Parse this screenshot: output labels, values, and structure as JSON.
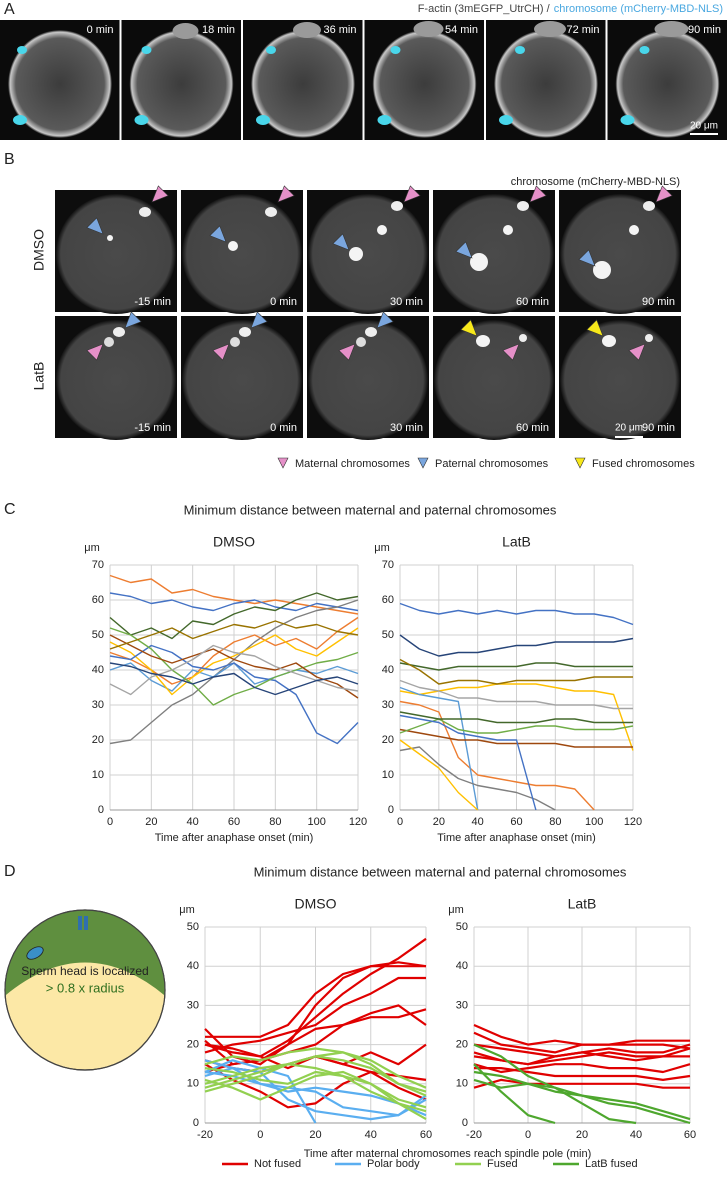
{
  "panel_a": {
    "label": "A",
    "title": [
      "F-actin (3mEGFP_UtrCH) /",
      "chromosome (mCherry-MBD-NLS)"
    ],
    "times": [
      "0 min",
      "18 min",
      "36 min",
      "54 min",
      "72 min",
      "90 min"
    ],
    "scale": "20 μm"
  },
  "panel_b": {
    "label": "B",
    "title": "chromosome (mCherry-MBD-NLS)",
    "rows": [
      "DMSO",
      "LatB"
    ],
    "times": [
      "-15 min",
      "0 min",
      "30 min",
      "60 min",
      "90 min"
    ],
    "scale": "20 μm",
    "legend": [
      "Maternal chromosomes",
      "Paternal chromosomes",
      "Fused chromosomes"
    ]
  },
  "panel_c": {
    "label": "C",
    "title": "Minimum distance between maternal and paternal chromosomes"
  },
  "panel_d": {
    "label": "D",
    "title": "Minimum distance between maternal and paternal chromosomes",
    "diagram": [
      "Sperm head is localized",
      "> 0.8 x radius"
    ],
    "legend": [
      {
        "name": "Not fused",
        "color": "#e00000"
      },
      {
        "name": "Polar body",
        "color": "#5aaef0"
      },
      {
        "name": "Fused",
        "color": "#92d050"
      },
      {
        "name": "LatB fused",
        "color": "#4ea72e"
      }
    ]
  },
  "chart_data": [
    {
      "type": "line",
      "title": "DMSO",
      "y_label": "μm",
      "x_label": "Time after anaphase onset (min)",
      "grid": true,
      "xlim": [
        0,
        120
      ],
      "ylim": [
        0,
        70
      ],
      "xticks": [
        0,
        20,
        40,
        60,
        80,
        100,
        120
      ],
      "yticks": [
        0,
        10,
        20,
        30,
        40,
        50,
        60,
        70
      ],
      "x": [
        0,
        10,
        20,
        30,
        40,
        50,
        60,
        70,
        80,
        90,
        100,
        110,
        120
      ],
      "series": [
        {
          "color": "#ed7d31",
          "values": [
            67,
            65,
            66,
            62,
            63,
            61,
            60,
            59,
            60,
            59,
            58,
            57,
            56
          ]
        },
        {
          "color": "#4472c4",
          "values": [
            62,
            61,
            59,
            60,
            58,
            57,
            59,
            60,
            58,
            57,
            59,
            58,
            57
          ]
        },
        {
          "color": "#43682b",
          "values": [
            55,
            50,
            52,
            49,
            54,
            53,
            56,
            58,
            57,
            60,
            62,
            60,
            61
          ]
        },
        {
          "color": "#7f7f7f",
          "values": [
            19,
            20,
            25,
            30,
            33,
            38,
            43,
            48,
            52,
            55,
            57,
            58,
            60
          ]
        },
        {
          "color": "#ed7d31",
          "values": [
            45,
            43,
            40,
            36,
            38,
            44,
            48,
            50,
            47,
            49,
            46,
            51,
            55
          ]
        },
        {
          "color": "#5b9bd5",
          "values": [
            40,
            42,
            37,
            34,
            40,
            38,
            42,
            36,
            38,
            40,
            39,
            41,
            39
          ]
        },
        {
          "color": "#ffc000",
          "values": [
            48,
            45,
            40,
            33,
            38,
            42,
            44,
            47,
            50,
            46,
            44,
            48,
            52
          ]
        },
        {
          "color": "#4472c4",
          "values": [
            44,
            43,
            47,
            45,
            41,
            40,
            42,
            38,
            37,
            33,
            22,
            19,
            25
          ]
        },
        {
          "color": "#70ad47",
          "values": [
            52,
            50,
            46,
            40,
            36,
            30,
            33,
            35,
            38,
            40,
            42,
            43,
            45
          ]
        },
        {
          "color": "#9e480e",
          "values": [
            50,
            47,
            44,
            42,
            44,
            46,
            43,
            41,
            40,
            42,
            38,
            36,
            32
          ]
        },
        {
          "color": "#a5a5a5",
          "values": [
            36,
            33,
            38,
            40,
            43,
            47,
            45,
            44,
            41,
            39,
            37,
            35,
            34
          ]
        },
        {
          "color": "#264478",
          "values": [
            42,
            41,
            39,
            38,
            36,
            38,
            39,
            35,
            33,
            35,
            37,
            38,
            36
          ]
        },
        {
          "color": "#997300",
          "values": [
            46,
            48,
            50,
            52,
            49,
            51,
            53,
            52,
            54,
            52,
            53,
            51,
            50
          ]
        }
      ]
    },
    {
      "type": "line",
      "title": "LatB",
      "y_label": "μm",
      "x_label": "Time after anaphase onset (min)",
      "grid": true,
      "xlim": [
        0,
        120
      ],
      "ylim": [
        0,
        70
      ],
      "xticks": [
        0,
        20,
        40,
        60,
        80,
        100,
        120
      ],
      "yticks": [
        0,
        10,
        20,
        30,
        40,
        50,
        60,
        70
      ],
      "x": [
        0,
        10,
        20,
        30,
        40,
        50,
        60,
        70,
        80,
        90,
        100,
        110,
        120
      ],
      "series": [
        {
          "color": "#4472c4",
          "values": [
            59,
            57,
            56,
            57,
            56,
            57,
            56,
            57,
            57,
            56,
            56,
            55,
            53
          ]
        },
        {
          "color": "#264478",
          "values": [
            50,
            46,
            44,
            45,
            45,
            46,
            47,
            47,
            48,
            48,
            48,
            48,
            49
          ]
        },
        {
          "color": "#43682b",
          "values": [
            42,
            41,
            40,
            41,
            41,
            41,
            41,
            42,
            42,
            41,
            41,
            41,
            41
          ]
        },
        {
          "color": "#ffc000",
          "values": [
            34,
            33,
            34,
            35,
            35,
            36,
            36,
            36,
            35,
            34,
            34,
            33,
            17
          ]
        },
        {
          "color": "#a5a5a5",
          "values": [
            37,
            35,
            34,
            32,
            32,
            31,
            31,
            31,
            30,
            30,
            30,
            29,
            29
          ]
        },
        {
          "color": "#997300",
          "values": [
            43,
            40,
            36,
            37,
            37,
            36,
            37,
            37,
            37,
            37,
            38,
            38,
            38
          ]
        },
        {
          "color": "#ed7d31",
          "values": [
            31,
            30,
            28,
            15,
            10,
            9,
            8,
            7,
            7,
            6,
            0,
            null,
            null
          ]
        },
        {
          "color": "#5b9bd5",
          "values": [
            35,
            33,
            32,
            31,
            0,
            null,
            null,
            null,
            null,
            null,
            null,
            null,
            null
          ]
        },
        {
          "color": "#9e480e",
          "values": [
            23,
            22,
            21,
            20,
            20,
            19,
            19,
            19,
            19,
            18,
            18,
            18,
            18
          ]
        },
        {
          "color": "#7f7f7f",
          "values": [
            17,
            18,
            13,
            9,
            7,
            6,
            5,
            3,
            0,
            null,
            null,
            null,
            null
          ]
        },
        {
          "color": "#70ad47",
          "values": [
            22,
            24,
            26,
            23,
            22,
            22,
            23,
            24,
            24,
            23,
            23,
            23,
            24
          ]
        },
        {
          "color": "#43682b",
          "values": [
            28,
            27,
            26,
            26,
            26,
            25,
            25,
            25,
            26,
            26,
            25,
            25,
            25
          ]
        },
        {
          "color": "#4472c4",
          "values": [
            27,
            26,
            25,
            22,
            21,
            20,
            20,
            0,
            null,
            null,
            null,
            null,
            null
          ]
        },
        {
          "color": "#ffc000",
          "values": [
            20,
            16,
            12,
            5,
            0,
            null,
            null,
            null,
            null,
            null,
            null,
            null,
            null
          ]
        }
      ]
    },
    {
      "type": "line",
      "title": "DMSO",
      "y_label": "μm",
      "x_label": "Time after maternal chromosomes reach spindle pole (min)",
      "grid": true,
      "xlim": [
        -20,
        60
      ],
      "ylim": [
        0,
        50
      ],
      "xticks": [
        -20,
        0,
        20,
        40,
        60
      ],
      "yticks": [
        0,
        10,
        20,
        30,
        40,
        50
      ],
      "x": [
        -20,
        -10,
        0,
        10,
        20,
        30,
        40,
        50,
        60
      ],
      "series": [
        {
          "color": "#e00000",
          "values": [
            22,
            22,
            22,
            25,
            33,
            38,
            40,
            40,
            40
          ]
        },
        {
          "color": "#e00000",
          "values": [
            24,
            17,
            15,
            20,
            30,
            37,
            40,
            41,
            40
          ]
        },
        {
          "color": "#e00000",
          "values": [
            20,
            18,
            17,
            21,
            27,
            33,
            38,
            42,
            47
          ]
        },
        {
          "color": "#e00000",
          "values": [
            18,
            20,
            21,
            23,
            25,
            30,
            33,
            37,
            37
          ]
        },
        {
          "color": "#e00000",
          "values": [
            21,
            15,
            16,
            18,
            20,
            25,
            28,
            30,
            25
          ]
        },
        {
          "color": "#e00000",
          "values": [
            13,
            15,
            16,
            20,
            24,
            25,
            27,
            27,
            29
          ]
        },
        {
          "color": "#e00000",
          "values": [
            16,
            14,
            13,
            15,
            17,
            15,
            13,
            12,
            11
          ]
        },
        {
          "color": "#e00000",
          "values": [
            15,
            11,
            8,
            4,
            5,
            10,
            13,
            9,
            6
          ]
        },
        {
          "color": "#e00000",
          "values": [
            20,
            19,
            17,
            14,
            17,
            15,
            18,
            15,
            20
          ]
        },
        {
          "color": "#5aaef0",
          "values": [
            13,
            12,
            10,
            9,
            8,
            4,
            3,
            2,
            6
          ]
        },
        {
          "color": "#5aaef0",
          "values": [
            16,
            14,
            13,
            6,
            3,
            2,
            1,
            2,
            7
          ]
        },
        {
          "color": "#5aaef0",
          "values": [
            13,
            16,
            14,
            12,
            0,
            null,
            null,
            null,
            null
          ]
        },
        {
          "color": "#5aaef0",
          "values": [
            12,
            14,
            10,
            8,
            9,
            8,
            7,
            5,
            2
          ]
        },
        {
          "color": "#92d050",
          "values": [
            10,
            12,
            14,
            15,
            17,
            18,
            16,
            12,
            9
          ]
        },
        {
          "color": "#92d050",
          "values": [
            8,
            10,
            12,
            15,
            17,
            16,
            14,
            10,
            8
          ]
        },
        {
          "color": "#92d050",
          "values": [
            14,
            13,
            11,
            10,
            13,
            12,
            8,
            5,
            3
          ]
        },
        {
          "color": "#92d050",
          "values": [
            11,
            9,
            6,
            9,
            12,
            13,
            10,
            6,
            4
          ]
        },
        {
          "color": "#92d050",
          "values": [
            15,
            17,
            16,
            18,
            19,
            18,
            15,
            10,
            7
          ]
        },
        {
          "color": "#92d050",
          "values": [
            9,
            11,
            13,
            15,
            14,
            12,
            10,
            5,
            1
          ]
        }
      ]
    },
    {
      "type": "line",
      "title": "LatB",
      "y_label": "μm",
      "grid": true,
      "xlim": [
        -20,
        60
      ],
      "ylim": [
        0,
        50
      ],
      "xticks": [
        -20,
        0,
        20,
        40,
        60
      ],
      "yticks": [
        0,
        10,
        20,
        30,
        40,
        50
      ],
      "x": [
        -20,
        -10,
        0,
        10,
        20,
        30,
        40,
        50,
        60
      ],
      "series": [
        {
          "color": "#e00000",
          "values": [
            25,
            22,
            20,
            21,
            20,
            20,
            20,
            20,
            19
          ]
        },
        {
          "color": "#e00000",
          "values": [
            20,
            19,
            18,
            17,
            18,
            19,
            18,
            18,
            20
          ]
        },
        {
          "color": "#e00000",
          "values": [
            17,
            16,
            15,
            16,
            17,
            18,
            17,
            17,
            17
          ]
        },
        {
          "color": "#e00000",
          "values": [
            18,
            16,
            15,
            17,
            18,
            17,
            16,
            17,
            19
          ]
        },
        {
          "color": "#e00000",
          "values": [
            23,
            20,
            19,
            18,
            20,
            20,
            21,
            21,
            21
          ]
        },
        {
          "color": "#e00000",
          "values": [
            15,
            13,
            14,
            15,
            15,
            14,
            14,
            13,
            15
          ]
        },
        {
          "color": "#e00000",
          "values": [
            9,
            11,
            10,
            10,
            10,
            10,
            10,
            9,
            9
          ]
        },
        {
          "color": "#e00000",
          "values": [
            14,
            14,
            13,
            12,
            12,
            12,
            12,
            11,
            12
          ]
        },
        {
          "color": "#4ea72e",
          "values": [
            15,
            8,
            2,
            0,
            null,
            null,
            null,
            null,
            null
          ]
        },
        {
          "color": "#4ea72e",
          "values": [
            11,
            9,
            10,
            8,
            7,
            6,
            5,
            3,
            1
          ]
        },
        {
          "color": "#4ea72e",
          "values": [
            20,
            17,
            12,
            9,
            7,
            5,
            4,
            2,
            0
          ]
        },
        {
          "color": "#4ea72e",
          "values": [
            13,
            12,
            10,
            9,
            5,
            1,
            0,
            null,
            null
          ]
        }
      ]
    }
  ]
}
